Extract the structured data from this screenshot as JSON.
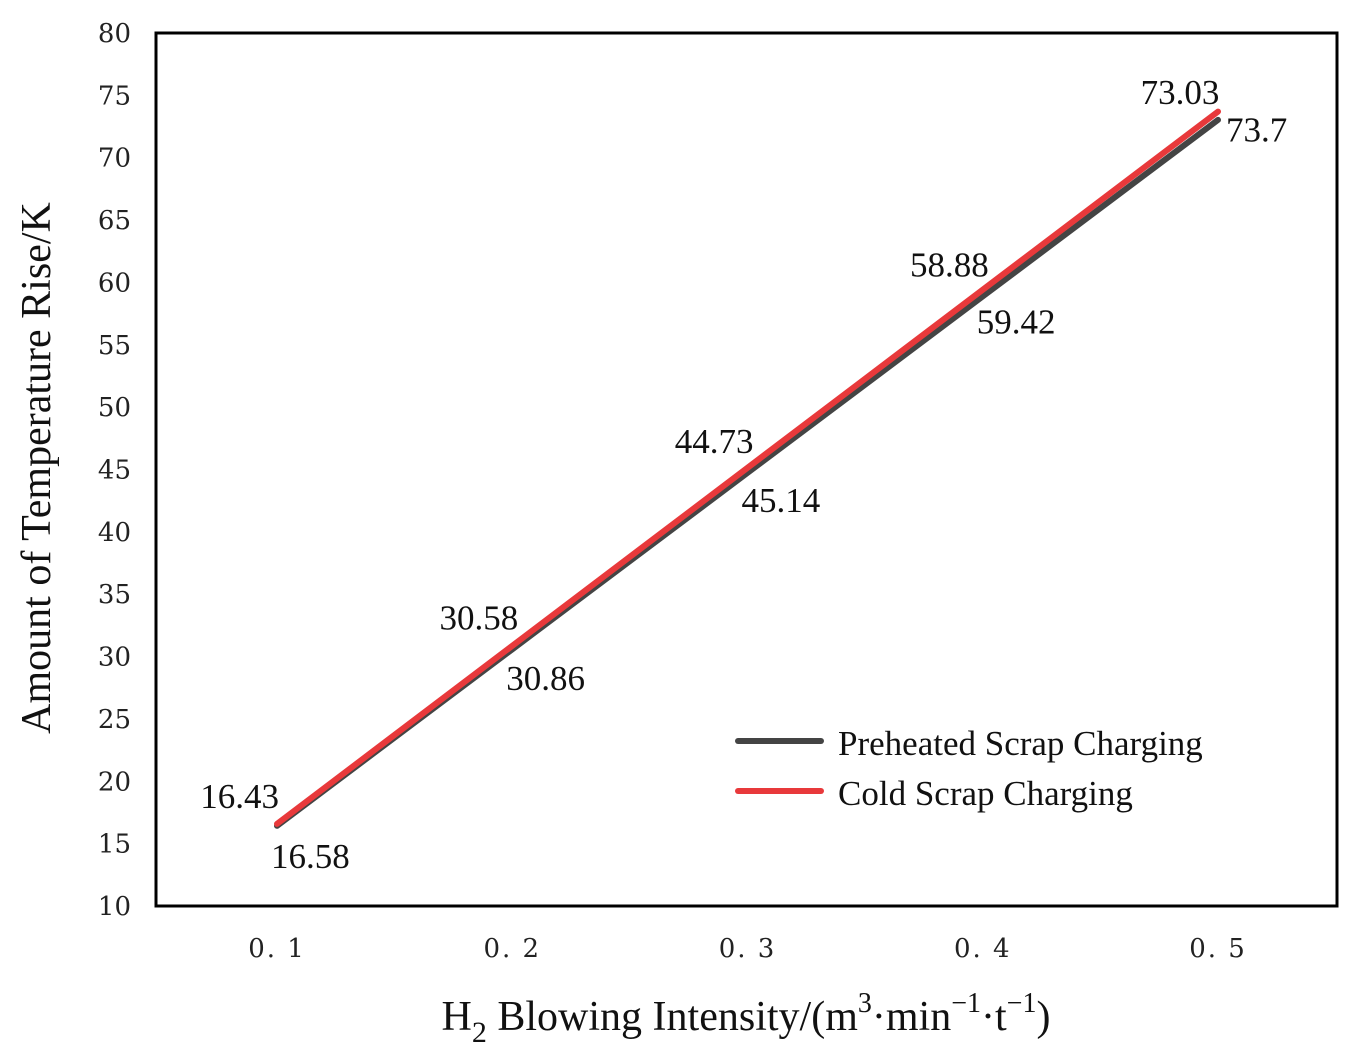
{
  "chart_data": {
    "type": "line",
    "title": "",
    "xlabel": "H2 Blowing Intensity/(m3·min−1·t−1)",
    "xlabel_parts": {
      "base": "H",
      "sub": "2",
      "mid": " Blowing Intensity/(m",
      "sup1": "3",
      "mid2": "·min",
      "sup2": "−1",
      "mid3": "·t",
      "sup3": "−1",
      "end": ")"
    },
    "ylabel": "Amount of Temperature Rise/K",
    "x": [
      0.1,
      0.2,
      0.3,
      0.4,
      0.5
    ],
    "x_tick_labels": [
      "0. 1",
      "0. 2",
      "0. 3",
      "0. 4",
      "0. 5"
    ],
    "ylim": [
      10,
      80
    ],
    "y_ticks": [
      10,
      15,
      20,
      25,
      30,
      35,
      40,
      45,
      50,
      55,
      60,
      65,
      70,
      75,
      80
    ],
    "series": [
      {
        "name": "Preheated Scrap Charging",
        "color": "#444444",
        "values": [
          16.43,
          30.58,
          44.73,
          58.88,
          73.03
        ],
        "labels": [
          "16.43",
          "30.58",
          "44.73",
          "58.88",
          "73.03"
        ],
        "label_position": "above-left"
      },
      {
        "name": "Cold Scrap Charging",
        "color": "#e8393b",
        "values": [
          16.58,
          30.86,
          45.14,
          59.42,
          73.7
        ],
        "labels": [
          "16.58",
          "30.86",
          "45.14",
          "59.42",
          "73.7"
        ],
        "label_position": "below-right"
      }
    ],
    "legend": {
      "position": "bottom-right"
    },
    "grid": false
  }
}
